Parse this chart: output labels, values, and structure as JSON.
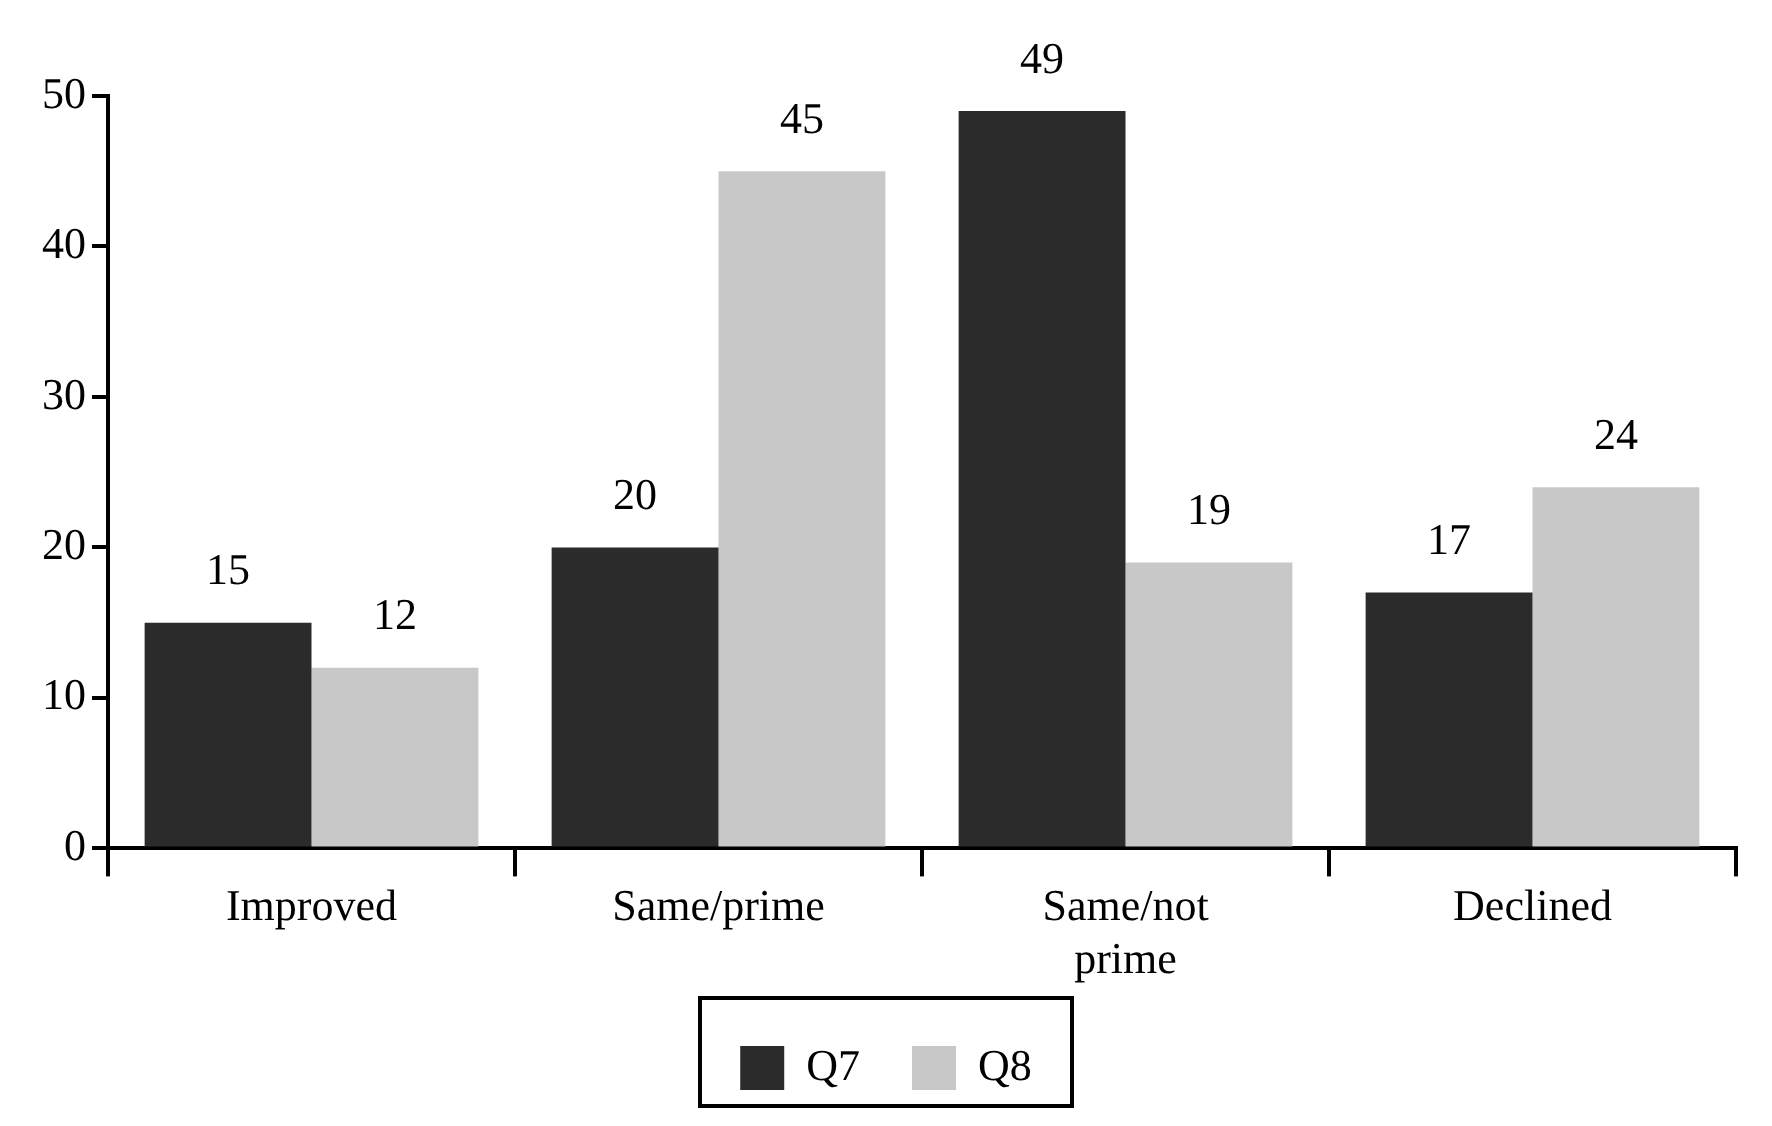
{
  "chart_data": {
    "type": "bar",
    "categories": [
      "Improved",
      "Same/prime",
      "Same/not prime",
      "Declined"
    ],
    "series": [
      {
        "name": "Q7",
        "color": "#2b2b2b",
        "values": [
          15,
          20,
          49,
          17
        ]
      },
      {
        "name": "Q8",
        "color": "#c8c8c8",
        "values": [
          12,
          45,
          19,
          24
        ]
      }
    ],
    "ylim": [
      0,
      50
    ],
    "yticks": [
      0,
      10,
      20,
      30,
      40,
      50
    ],
    "grid": false,
    "legend": "bottom",
    "data_labels": true
  }
}
